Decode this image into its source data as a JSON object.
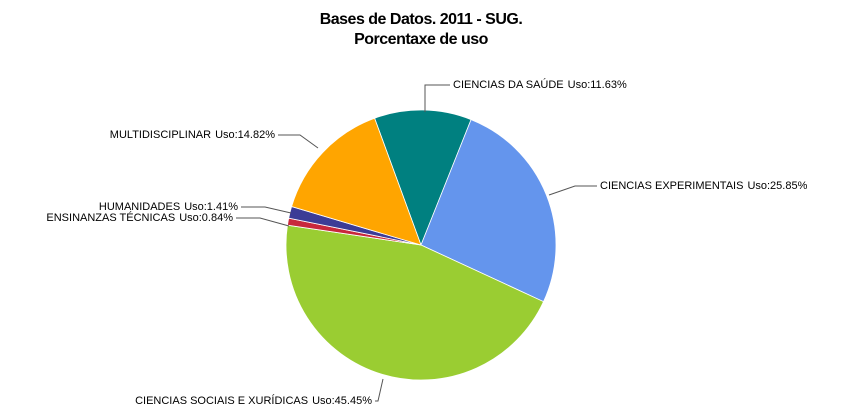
{
  "chart_data": {
    "type": "pie",
    "title": "Bases de Datos. 2011 - SUG.",
    "subtitle": "Porcentaxe de uso",
    "categories": [
      "CIENCIAS DA SAÚDE",
      "CIENCIAS EXPERIMENTAIS",
      "CIENCIAS SOCIAIS E XURÍDICAS",
      "ENSINANZAS TÉCNICAS",
      "HUMANIDADES",
      "MULTIDISCIPLINAR"
    ],
    "values": [
      11.63,
      25.85,
      45.45,
      0.84,
      1.41,
      14.82
    ],
    "value_labels": [
      "Uso:11.63%",
      "Uso:25.85%",
      "Uso:45.45%",
      "Uso:0.84%",
      "Uso:1.41%",
      "Uso:14.82%"
    ],
    "colors": [
      "#008080",
      "#6495ed",
      "#9acd32",
      "#c8283c",
      "#3c3c96",
      "#ffa500"
    ]
  }
}
